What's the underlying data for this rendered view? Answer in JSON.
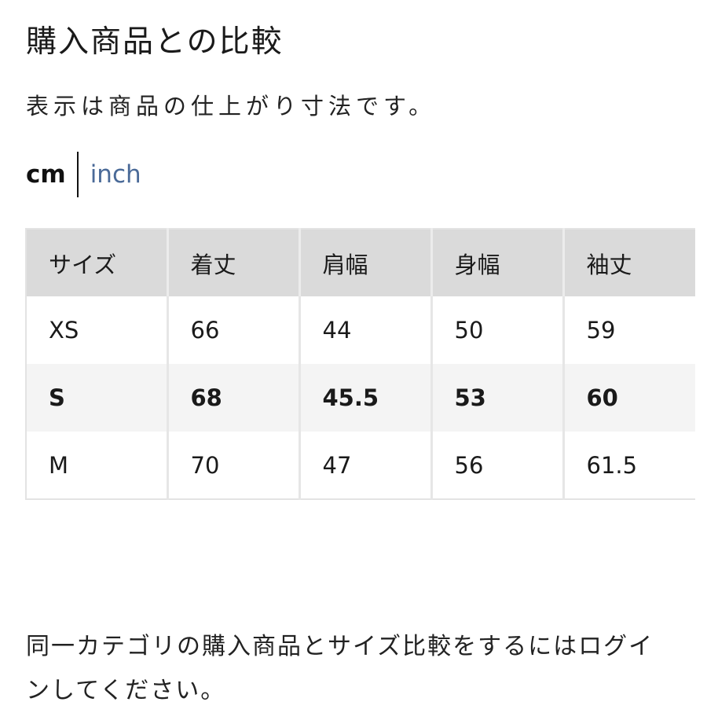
{
  "header": {
    "title": "購入商品との比較",
    "note": "表示は商品の仕上がり寸法です。"
  },
  "units": {
    "active": "cm",
    "inactive": "inch",
    "link_color": "#4a6a98"
  },
  "size_table": {
    "headers": [
      "サイズ",
      "着丈",
      "肩幅",
      "身幅",
      "袖丈"
    ],
    "rows": [
      {
        "size": "XS",
        "values": [
          "66",
          "44",
          "50",
          "59"
        ],
        "highlighted": false
      },
      {
        "size": "S",
        "values": [
          "68",
          "45.5",
          "53",
          "60"
        ],
        "highlighted": true
      },
      {
        "size": "M",
        "values": [
          "70",
          "47",
          "56",
          "61.5"
        ],
        "highlighted": false
      }
    ]
  },
  "footer": {
    "login_prompt": "同一カテゴリの購入商品とサイズ比較をするにはログインしてください。"
  }
}
